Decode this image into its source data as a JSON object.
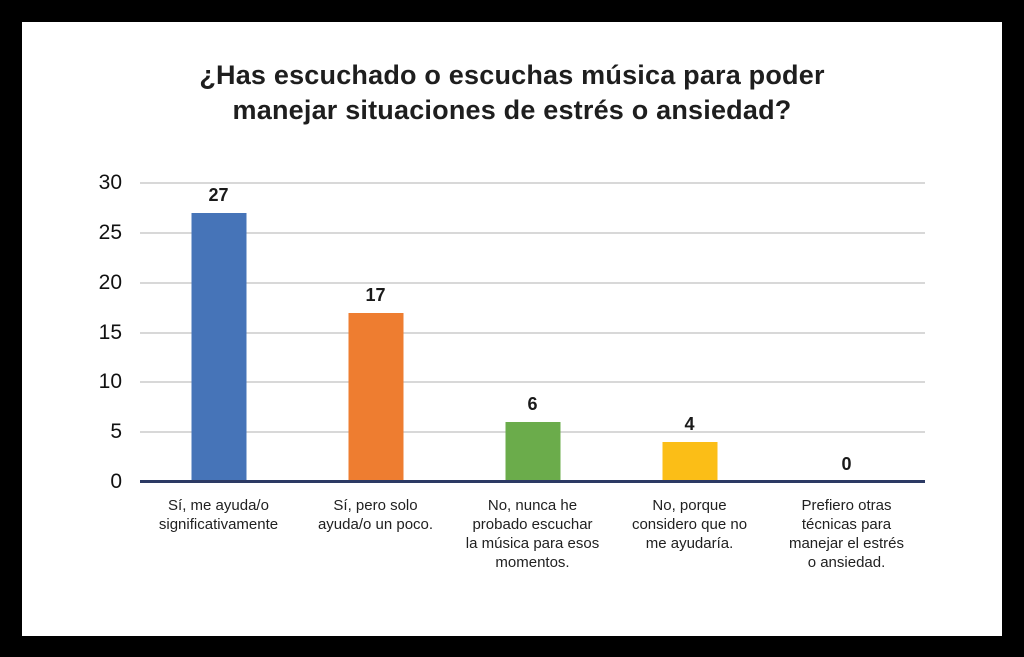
{
  "frame": {
    "border_color": "#000000",
    "panel_color": "#ffffff"
  },
  "chart": {
    "title_lines": [
      "¿Has escuchado o escuchas música para poder",
      "manejar situaciones de estrés o ansiedad?"
    ]
  },
  "chart_data": {
    "type": "bar",
    "title": "¿Has escuchado o escuchas música para poder manejar situaciones de estrés o ansiedad?",
    "categories": [
      "Sí, me ayuda/o significativamente",
      "Sí, pero solo ayuda/o un poco.",
      "No, nunca he probado escuchar la música para esos momentos.",
      "No, porque considero que no me ayudaría.",
      "Prefiero otras técnicas para manejar el estrés o ansiedad."
    ],
    "category_lines": [
      [
        "Sí, me ayuda/o",
        "significativamente"
      ],
      [
        "Sí, pero solo",
        "ayuda/o un poco."
      ],
      [
        "No, nunca he",
        "probado escuchar",
        "la música para esos",
        "momentos."
      ],
      [
        "No, porque",
        "considero que no",
        "me ayudaría."
      ],
      [
        "Prefiero otras",
        "técnicas para",
        "manejar el estrés",
        "o ansiedad."
      ]
    ],
    "values": [
      27,
      17,
      6,
      4,
      0
    ],
    "bar_colors": [
      "#4674B8",
      "#EE7D30",
      "#6BAC4B",
      "#FBBE17",
      null
    ],
    "ylim": [
      0,
      30
    ],
    "yticks": [
      0,
      5,
      10,
      15,
      20,
      25,
      30
    ],
    "grid": true,
    "gridline_color": "#D8D8D8",
    "axis_line_color": "#2C3A64",
    "text_color": "#212121",
    "xlabel": "",
    "ylabel": "",
    "legend": "none"
  }
}
